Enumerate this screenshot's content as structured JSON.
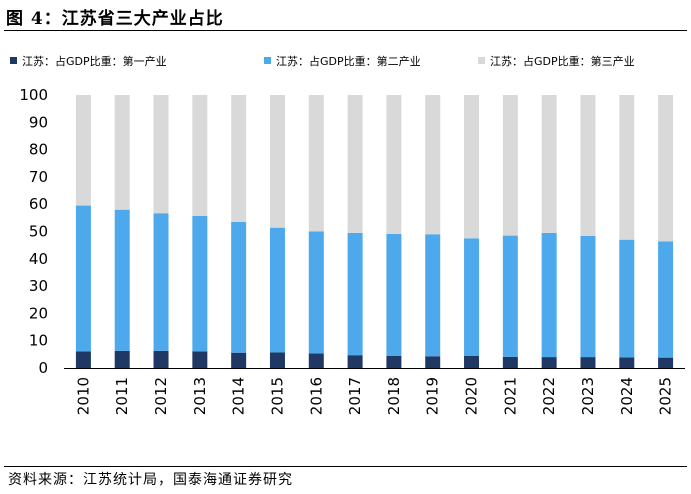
{
  "figure_title": "图 4：江苏省三大产业占比",
  "source": "资料来源：江苏统计局，国泰海通证券研究",
  "chart_data": {
    "type": "bar",
    "stacked": true,
    "categories": [
      "2010",
      "2011",
      "2012",
      "2013",
      "2014",
      "2015",
      "2016",
      "2017",
      "2018",
      "2019",
      "2020",
      "2021",
      "2022",
      "2023",
      "2024",
      "2025"
    ],
    "series": [
      {
        "name": "江苏：占GDP比重：第一产业",
        "color": "#1f3864",
        "values": [
          6.1,
          6.3,
          6.3,
          6.1,
          5.6,
          5.7,
          5.3,
          4.7,
          4.4,
          4.3,
          4.4,
          4.1,
          4.0,
          4.0,
          3.9,
          3.8
        ]
      },
      {
        "name": "江苏：占GDP比重：第二产业",
        "color": "#4ea9ec",
        "values": [
          53.4,
          51.7,
          50.4,
          49.6,
          47.9,
          45.7,
          44.7,
          44.8,
          44.7,
          44.7,
          43.1,
          44.4,
          45.5,
          44.4,
          43.1,
          42.6
        ]
      },
      {
        "name": "江苏：占GDP比重：第三产业",
        "color": "#d9d9d9",
        "values": [
          40.5,
          42.0,
          43.3,
          44.3,
          46.5,
          48.6,
          50.0,
          50.5,
          50.9,
          51.0,
          52.5,
          51.5,
          50.5,
          51.6,
          53.0,
          53.6
        ]
      }
    ],
    "ylim": [
      0,
      100
    ],
    "yticks": [
      0,
      10,
      20,
      30,
      40,
      50,
      60,
      70,
      80,
      90,
      100
    ],
    "legend_position": "top",
    "grid": false
  }
}
